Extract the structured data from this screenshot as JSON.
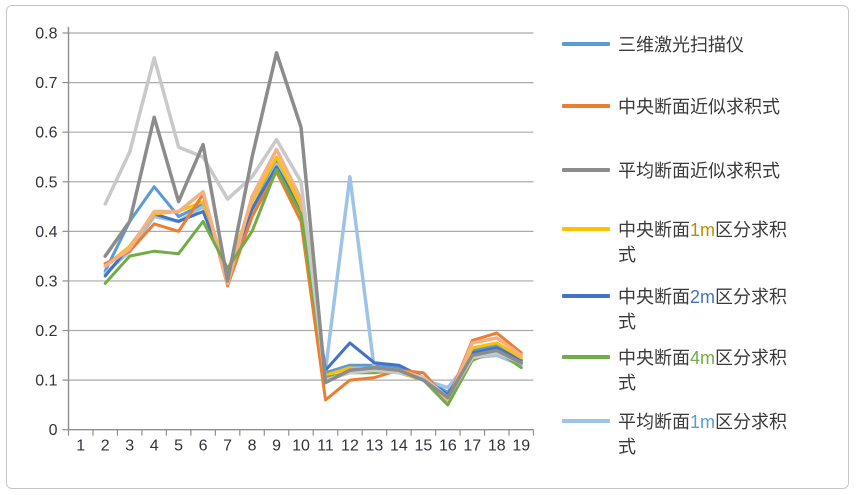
{
  "frame": {
    "border_color": "#c6c6c6",
    "background": "#ffffff"
  },
  "chart_data": {
    "type": "line",
    "title": "",
    "xlabel": "",
    "ylabel": "",
    "grid": true,
    "legend_position": "right",
    "x_axis": {
      "categories": [
        "1",
        "2",
        "3",
        "4",
        "5",
        "6",
        "7",
        "8",
        "9",
        "10",
        "11",
        "12",
        "13",
        "14",
        "15",
        "16",
        "17",
        "18",
        "19"
      ]
    },
    "y_axis": {
      "min": 0,
      "max": 0.8,
      "tick_step": 0.1,
      "tick_labels": [
        "0",
        "0.1",
        "0.2",
        "0.3",
        "0.4",
        "0.5",
        "0.6",
        "0.7",
        "0.8"
      ]
    },
    "axis_color": "#8f8f8f",
    "gridline_color": "#ababab",
    "tick_label_color": "#33333d",
    "series": [
      {
        "name": "三维激光扫描仪",
        "color": "#5B9BD5",
        "line_width": 3,
        "values": [
          null,
          0.32,
          0.42,
          0.49,
          0.43,
          0.455,
          0.315,
          0.445,
          0.54,
          0.46,
          0.115,
          0.13,
          0.13,
          0.125,
          0.105,
          0.075,
          0.16,
          0.17,
          0.14
        ]
      },
      {
        "name": "中央断面近似求积式",
        "color": "#ED7D31",
        "line_width": 3,
        "values": [
          null,
          0.335,
          0.36,
          0.415,
          0.4,
          0.475,
          0.29,
          0.43,
          0.52,
          0.42,
          0.06,
          0.1,
          0.105,
          0.12,
          0.115,
          0.06,
          0.18,
          0.195,
          0.155
        ]
      },
      {
        "name": "平均断面近似求积式",
        "color": "#8C8C8C",
        "line_width": 3.5,
        "values": [
          null,
          0.35,
          0.42,
          0.63,
          0.46,
          0.575,
          0.3,
          0.55,
          0.76,
          0.61,
          0.095,
          0.12,
          0.125,
          0.12,
          0.1,
          0.065,
          0.15,
          0.16,
          0.135
        ]
      },
      {
        "name": "中央断面1m区分求积式",
        "color": "#FFC000",
        "line_width": 3,
        "values": [
          null,
          0.33,
          0.37,
          0.435,
          0.44,
          0.46,
          0.32,
          0.46,
          0.55,
          0.45,
          0.11,
          0.125,
          0.12,
          0.115,
          0.1,
          0.06,
          0.165,
          0.175,
          0.145
        ]
      },
      {
        "name": "中央断面2m区分求积式",
        "color": "#4472C4",
        "line_width": 3,
        "values": [
          null,
          0.31,
          0.37,
          0.435,
          0.42,
          0.44,
          0.315,
          0.445,
          0.53,
          0.445,
          0.12,
          0.175,
          0.135,
          0.13,
          0.105,
          0.07,
          0.155,
          0.165,
          0.14
        ]
      },
      {
        "name": "中央断面4m区分求积式",
        "color": "#70AD47",
        "line_width": 3,
        "values": [
          null,
          0.295,
          0.35,
          0.36,
          0.355,
          0.42,
          0.325,
          0.4,
          0.525,
          0.435,
          0.105,
          0.115,
          0.115,
          0.12,
          0.1,
          0.05,
          0.14,
          0.16,
          0.125
        ]
      },
      {
        "name": "平均断面1m区分求积式",
        "color": "#9DC3E6",
        "line_width": 3.5,
        "values": [
          null,
          0.315,
          0.36,
          0.43,
          0.42,
          0.45,
          0.31,
          0.44,
          0.535,
          0.44,
          0.12,
          0.51,
          0.12,
          0.115,
          0.1,
          0.085,
          0.145,
          0.15,
          0.13
        ]
      },
      {
        "name": "unlabeled-light-gray-line",
        "color": "#C9C9C9",
        "line_width": 3.5,
        "in_legend": false,
        "values": [
          null,
          0.455,
          0.56,
          0.75,
          0.57,
          0.55,
          0.465,
          0.51,
          0.585,
          0.5,
          0.1,
          0.115,
          0.12,
          0.115,
          0.105,
          0.065,
          0.145,
          0.155,
          0.135
        ]
      },
      {
        "name": "unlabeled-salmon-line",
        "color": "#F4B183",
        "line_width": 3.5,
        "in_legend": false,
        "values": [
          null,
          0.33,
          0.365,
          0.44,
          0.44,
          0.48,
          0.295,
          0.47,
          0.565,
          0.465,
          0.1,
          0.12,
          0.125,
          0.12,
          0.105,
          0.055,
          0.175,
          0.185,
          0.15
        ]
      }
    ],
    "draw_order": [
      0,
      6,
      4,
      3,
      1,
      8,
      5,
      7,
      2
    ],
    "legend": [
      {
        "series": 0,
        "parts": [
          {
            "text": "三维激光扫描仪"
          }
        ]
      },
      {
        "series": 1,
        "parts": [
          {
            "text": "中央断面近似求积式"
          }
        ]
      },
      {
        "series": 2,
        "parts": [
          {
            "text": "平均断面近似求积式"
          }
        ]
      },
      {
        "series": 3,
        "parts": [
          {
            "text": "中央断面"
          },
          {
            "text": "1m",
            "color": "#BF8F00"
          },
          {
            "text": "区分求积"
          },
          {
            "br": true
          },
          {
            "text": "式"
          }
        ]
      },
      {
        "series": 4,
        "parts": [
          {
            "text": "中央断面"
          },
          {
            "text": "2m",
            "color": "#4472C4"
          },
          {
            "text": "区分求积"
          },
          {
            "br": true
          },
          {
            "text": "式"
          }
        ]
      },
      {
        "series": 5,
        "parts": [
          {
            "text": "中央断面"
          },
          {
            "text": "4m",
            "color": "#70AD47"
          },
          {
            "text": "区分求积"
          },
          {
            "br": true
          },
          {
            "text": "式"
          }
        ]
      },
      {
        "series": 6,
        "parts": [
          {
            "text": "平均断面"
          },
          {
            "text": "1m",
            "color": "#5B9BD5"
          },
          {
            "text": "区分求积"
          },
          {
            "br": true
          },
          {
            "text": "式"
          }
        ]
      }
    ]
  }
}
